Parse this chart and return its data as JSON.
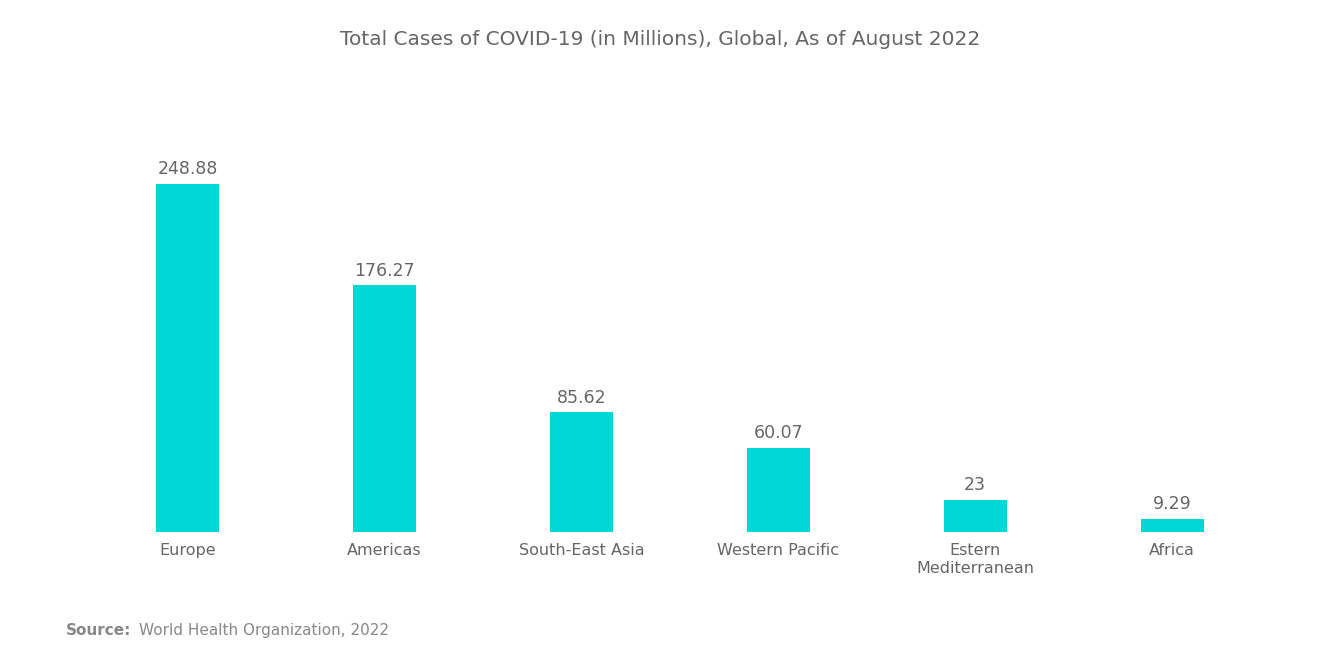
{
  "title": "Total Cases of COVID-19 (in Millions), Global, As of August 2022",
  "categories": [
    "Europe",
    "Americas",
    "South-East Asia",
    "Western Pacific",
    "Estern\nMediterranean",
    "Africa"
  ],
  "values": [
    248.88,
    176.27,
    85.62,
    60.07,
    23,
    9.29
  ],
  "bar_color": "#00D8D8",
  "label_color": "#666666",
  "title_color": "#666666",
  "source_bold": "Source:",
  "source_text": "World Health Organization, 2022",
  "source_color": "#888888",
  "background_color": "#ffffff",
  "title_fontsize": 14.5,
  "label_fontsize": 12.5,
  "tick_fontsize": 11.5,
  "source_fontsize": 11,
  "bar_width": 0.32
}
